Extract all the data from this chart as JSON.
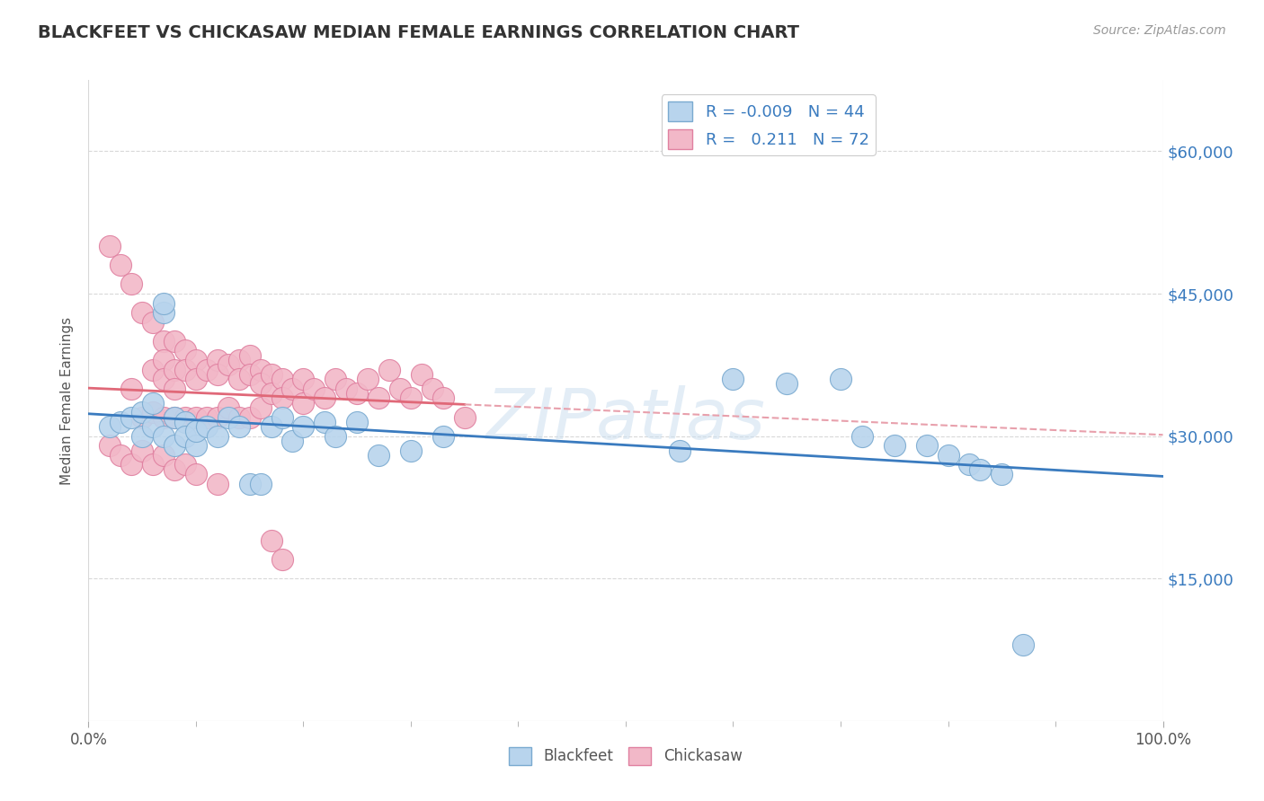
{
  "title": "BLACKFEET VS CHICKASAW MEDIAN FEMALE EARNINGS CORRELATION CHART",
  "source": "Source: ZipAtlas.com",
  "ylabel": "Median Female Earnings",
  "xlim": [
    0,
    1
  ],
  "ylim": [
    0,
    67500
  ],
  "yticks": [
    0,
    15000,
    30000,
    45000,
    60000
  ],
  "ytick_labels": [
    "",
    "$15,000",
    "$30,000",
    "$45,000",
    "$60,000"
  ],
  "xtick_labels": [
    "0.0%",
    "100.0%"
  ],
  "bg_color": "#ffffff",
  "grid_color": "#d8d8d8",
  "title_color": "#333333",
  "title_fontsize": 14,
  "watermark": "ZIPatlas",
  "blackfeet_color": "#b8d4ed",
  "chickasaw_color": "#f2b8c8",
  "blackfeet_edge_color": "#7aaad0",
  "chickasaw_edge_color": "#e080a0",
  "trend_blackfeet_color": "#3a7bbf",
  "trend_chickasaw_color": "#e06878",
  "trend_chickasaw_dashed_color": "#e8a0ac",
  "R_blackfeet": -0.009,
  "N_blackfeet": 44,
  "R_chickasaw": 0.211,
  "N_chickasaw": 72,
  "blackfeet_x": [
    0.02,
    0.03,
    0.04,
    0.05,
    0.05,
    0.06,
    0.06,
    0.07,
    0.07,
    0.07,
    0.08,
    0.08,
    0.09,
    0.09,
    0.1,
    0.1,
    0.11,
    0.12,
    0.13,
    0.14,
    0.15,
    0.16,
    0.17,
    0.18,
    0.19,
    0.2,
    0.22,
    0.23,
    0.25,
    0.27,
    0.3,
    0.33,
    0.55,
    0.6,
    0.65,
    0.7,
    0.72,
    0.75,
    0.78,
    0.8,
    0.82,
    0.83,
    0.85,
    0.87
  ],
  "blackfeet_y": [
    31000,
    31500,
    32000,
    30000,
    32500,
    33500,
    31000,
    43000,
    44000,
    30000,
    32000,
    29000,
    31500,
    30000,
    29000,
    30500,
    31000,
    30000,
    32000,
    31000,
    25000,
    25000,
    31000,
    32000,
    29500,
    31000,
    31500,
    30000,
    31500,
    28000,
    28500,
    30000,
    28500,
    36000,
    35500,
    36000,
    30000,
    29000,
    29000,
    28000,
    27000,
    26500,
    26000,
    8000
  ],
  "chickasaw_x": [
    0.02,
    0.03,
    0.04,
    0.04,
    0.05,
    0.05,
    0.06,
    0.06,
    0.06,
    0.07,
    0.07,
    0.07,
    0.07,
    0.08,
    0.08,
    0.08,
    0.08,
    0.09,
    0.09,
    0.09,
    0.1,
    0.1,
    0.1,
    0.11,
    0.11,
    0.12,
    0.12,
    0.12,
    0.13,
    0.13,
    0.14,
    0.14,
    0.14,
    0.15,
    0.15,
    0.15,
    0.16,
    0.16,
    0.16,
    0.17,
    0.17,
    0.18,
    0.18,
    0.19,
    0.2,
    0.2,
    0.21,
    0.22,
    0.23,
    0.24,
    0.25,
    0.26,
    0.27,
    0.28,
    0.29,
    0.3,
    0.31,
    0.32,
    0.33,
    0.35,
    0.02,
    0.03,
    0.04,
    0.05,
    0.06,
    0.07,
    0.08,
    0.09,
    0.1,
    0.12,
    0.17,
    0.18
  ],
  "chickasaw_y": [
    50000,
    48000,
    46000,
    35000,
    43000,
    32000,
    42000,
    37000,
    32500,
    40000,
    38000,
    36000,
    32000,
    40000,
    37000,
    35000,
    32000,
    39000,
    37000,
    32000,
    38000,
    36000,
    32000,
    37000,
    32000,
    38000,
    36500,
    32000,
    37500,
    33000,
    38000,
    36000,
    32000,
    38500,
    36500,
    32000,
    37000,
    35500,
    33000,
    36500,
    34500,
    36000,
    34000,
    35000,
    36000,
    33500,
    35000,
    34000,
    36000,
    35000,
    34500,
    36000,
    34000,
    37000,
    35000,
    34000,
    36500,
    35000,
    34000,
    32000,
    29000,
    28000,
    27000,
    28500,
    27000,
    28000,
    26500,
    27000,
    26000,
    25000,
    19000,
    17000
  ]
}
